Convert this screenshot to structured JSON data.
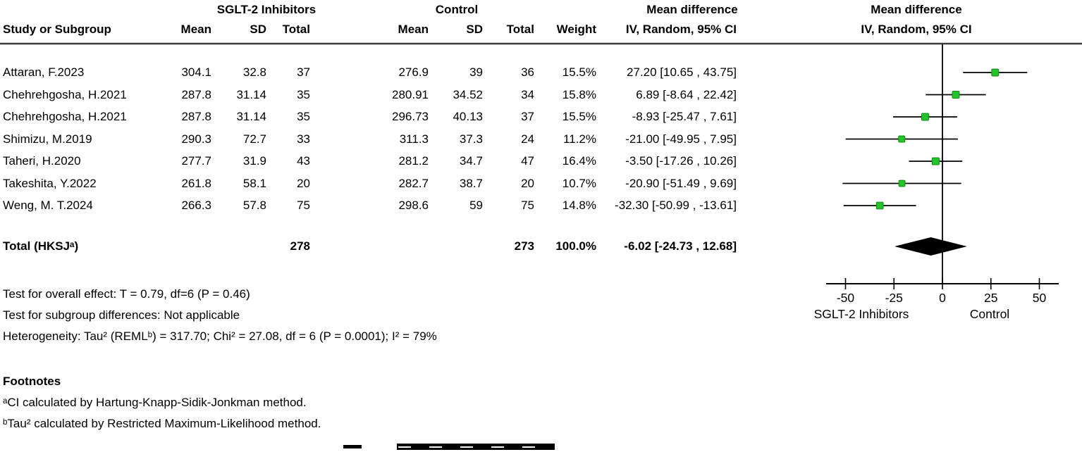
{
  "header": {
    "group1_label": "SGLT-2 Inhibitors",
    "group2_label": "Control",
    "effect_col_title": "Mean difference",
    "effect_col_subtitle": "IV, Random, 95% CI",
    "plot_col_title": "Mean difference",
    "plot_col_subtitle": "IV, Random, 95% CI",
    "col_study": "Study or Subgroup",
    "col_mean": "Mean",
    "col_sd": "SD",
    "col_total": "Total",
    "col_weight": "Weight"
  },
  "table": {
    "rows": [
      {
        "study": "Attaran, F.2023",
        "mean1": "304.1",
        "sd1": "32.8",
        "total1": "37",
        "mean2": "276.9",
        "sd2": "39",
        "total2": "36",
        "weight": "15.5%",
        "ci": "27.20 [10.65 , 43.75]"
      },
      {
        "study": "Chehrehgosha, H.2021",
        "mean1": "287.8",
        "sd1": "31.14",
        "total1": "35",
        "mean2": "280.91",
        "sd2": "34.52",
        "total2": "34",
        "weight": "15.8%",
        "ci": "6.89 [-8.64 , 22.42]"
      },
      {
        "study": "Chehrehgosha, H.2021",
        "mean1": "287.8",
        "sd1": "31.14",
        "total1": "35",
        "mean2": "296.73",
        "sd2": "40.13",
        "total2": "37",
        "weight": "15.5%",
        "ci": "-8.93 [-25.47 , 7.61]"
      },
      {
        "study": "Shimizu, M.2019",
        "mean1": "290.3",
        "sd1": "72.7",
        "total1": "33",
        "mean2": "311.3",
        "sd2": "37.3",
        "total2": "24",
        "weight": "11.2%",
        "ci": "-21.00 [-49.95 , 7.95]"
      },
      {
        "study": "Taheri, H.2020",
        "mean1": "277.7",
        "sd1": "31.9",
        "total1": "43",
        "mean2": "281.2",
        "sd2": "34.7",
        "total2": "47",
        "weight": "16.4%",
        "ci": "-3.50 [-17.26 , 10.26]"
      },
      {
        "study": "Takeshita, Y.2022",
        "mean1": "261.8",
        "sd1": "58.1",
        "total1": "20",
        "mean2": "282.7",
        "sd2": "38.7",
        "total2": "20",
        "weight": "10.7%",
        "ci": "-20.90 [-51.49 , 9.69]"
      },
      {
        "study": "Weng, M. T.2024",
        "mean1": "266.3",
        "sd1": "57.8",
        "total1": "75",
        "mean2": "298.6",
        "sd2": "59",
        "total2": "75",
        "weight": "14.8%",
        "ci": "-32.30 [-50.99 , -13.61]"
      }
    ],
    "total_row": {
      "label": "Total (HKSJᵃ)",
      "total1": "278",
      "total2": "273",
      "weight": "100.0%",
      "ci": "-6.02 [-24.73 , 12.68]"
    }
  },
  "stats": {
    "overall_effect": "Test for overall effect: T = 0.79, df=6 (P = 0.46)",
    "subgroup_differences": "Test for subgroup differences: Not applicable",
    "heterogeneity": "Heterogeneity: Tau² (REMLᵇ) = 317.70; Chi² = 27.08, df = 6 (P = 0.0001); I² = 79%"
  },
  "footnotes": {
    "title": "Footnotes",
    "a": "ᵃCI calculated by Hartung-Knapp-Sidik-Jonkman method.",
    "b": "ᵇTau² calculated by Restricted Maximum-Likelihood method."
  },
  "chart_data": {
    "type": "forest",
    "effect_measure": "Mean difference, IV, Random, 95% CI",
    "studies": [
      {
        "name": "Attaran, F.2023",
        "est": 27.2,
        "lo": 10.65,
        "hi": 43.75,
        "weight": 15.5
      },
      {
        "name": "Chehrehgosha, H.2021",
        "est": 6.89,
        "lo": -8.64,
        "hi": 22.42,
        "weight": 15.8
      },
      {
        "name": "Chehrehgosha, H.2021",
        "est": -8.93,
        "lo": -25.47,
        "hi": 7.61,
        "weight": 15.5
      },
      {
        "name": "Shimizu, M.2019",
        "est": -21.0,
        "lo": -49.95,
        "hi": 7.95,
        "weight": 11.2
      },
      {
        "name": "Taheri, H.2020",
        "est": -3.5,
        "lo": -17.26,
        "hi": 10.26,
        "weight": 16.4
      },
      {
        "name": "Takeshita, Y.2022",
        "est": -20.9,
        "lo": -51.49,
        "hi": 9.69,
        "weight": 10.7
      },
      {
        "name": "Weng, M. T.2024",
        "est": -32.3,
        "lo": -50.99,
        "hi": -13.61,
        "weight": 14.8
      }
    ],
    "total": {
      "label": "Total (HKSJᵃ)",
      "est": -6.02,
      "lo": -24.73,
      "hi": 12.68,
      "weight": 100.0
    },
    "axis": {
      "ticks": [
        -50,
        -25,
        0,
        25,
        50
      ],
      "xlim": [
        -60,
        60
      ],
      "label_left": "SGLT-2 Inhibitors",
      "label_right": "Control"
    },
    "marker_color": "#22c32b",
    "marker_border_color": "#0f8a0f",
    "line_color": "#000000",
    "diamond_color": "#000000"
  }
}
